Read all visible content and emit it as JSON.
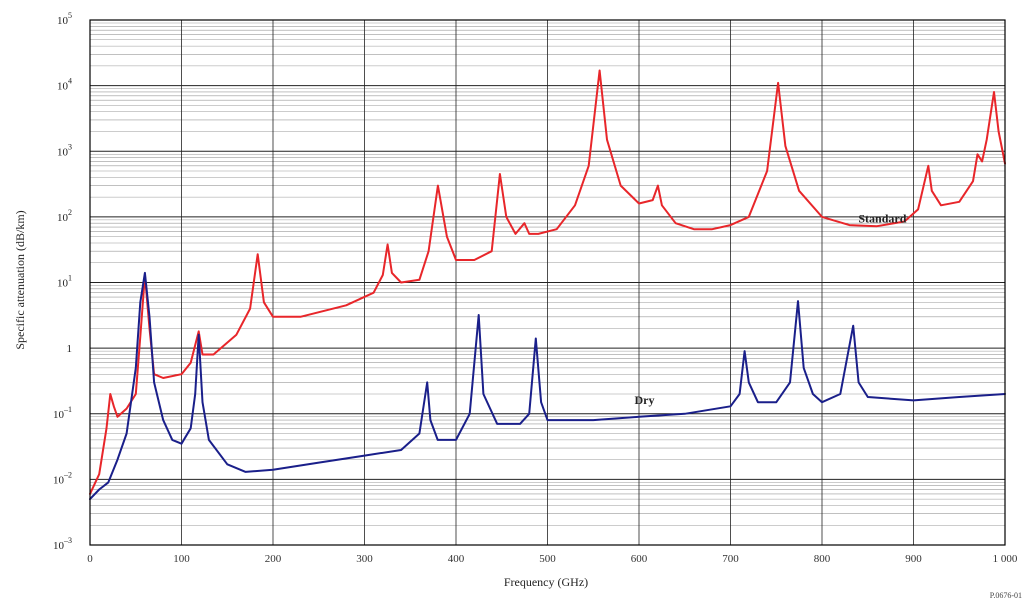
{
  "chart_data": {
    "type": "line",
    "title": "",
    "xlabel": "Frequency (GHz)",
    "ylabel": "Specific attenuation (dB/km)",
    "xlim": [
      0,
      1000
    ],
    "ylim": [
      0.001,
      100000
    ],
    "yscale": "log",
    "grid": true,
    "x_ticks": [
      "0",
      "100",
      "200",
      "300",
      "400",
      "500",
      "600",
      "700",
      "800",
      "900",
      "1 000"
    ],
    "y_ticks": [
      {
        "base": "10",
        "exp": "5"
      },
      {
        "base": "10",
        "exp": "4"
      },
      {
        "base": "10",
        "exp": "3"
      },
      {
        "base": "10",
        "exp": "2"
      },
      {
        "base": "10",
        "exp": "1"
      },
      {
        "base": "1",
        "exp": ""
      },
      {
        "base": "10",
        "exp": "–1"
      },
      {
        "base": "10",
        "exp": "–2"
      },
      {
        "base": "10",
        "exp": "–3"
      }
    ],
    "figure_ref": "P.0676-01",
    "series": [
      {
        "name": "Standard",
        "color": "#e8262a",
        "points": [
          [
            0,
            0.006
          ],
          [
            10,
            0.012
          ],
          [
            18,
            0.06
          ],
          [
            22.2,
            0.2
          ],
          [
            26,
            0.13
          ],
          [
            30,
            0.09
          ],
          [
            40,
            0.12
          ],
          [
            50,
            0.2
          ],
          [
            55,
            1.5
          ],
          [
            60,
            13
          ],
          [
            65,
            2.0
          ],
          [
            70,
            0.4
          ],
          [
            80,
            0.35
          ],
          [
            100,
            0.4
          ],
          [
            110,
            0.6
          ],
          [
            118.75,
            1.8
          ],
          [
            123,
            0.8
          ],
          [
            135,
            0.8
          ],
          [
            160,
            1.6
          ],
          [
            175,
            4
          ],
          [
            183.3,
            27
          ],
          [
            190,
            5
          ],
          [
            200,
            3.0
          ],
          [
            230,
            3.0
          ],
          [
            280,
            4.5
          ],
          [
            310,
            7
          ],
          [
            320,
            13
          ],
          [
            325.2,
            38
          ],
          [
            330,
            14
          ],
          [
            340,
            10
          ],
          [
            360,
            11
          ],
          [
            370,
            30
          ],
          [
            380.2,
            300
          ],
          [
            390,
            50
          ],
          [
            400,
            22
          ],
          [
            420,
            22
          ],
          [
            439,
            30
          ],
          [
            448,
            450
          ],
          [
            455,
            100
          ],
          [
            465,
            55
          ],
          [
            474.7,
            80
          ],
          [
            480,
            55
          ],
          [
            490,
            55
          ],
          [
            510,
            65
          ],
          [
            530,
            150
          ],
          [
            545,
            600
          ],
          [
            556.9,
            17000
          ],
          [
            565,
            1500
          ],
          [
            580,
            300
          ],
          [
            600,
            160
          ],
          [
            615,
            180
          ],
          [
            620.7,
            300
          ],
          [
            625,
            150
          ],
          [
            640,
            80
          ],
          [
            660,
            65
          ],
          [
            680,
            65
          ],
          [
            700,
            75
          ],
          [
            720,
            100
          ],
          [
            740,
            500
          ],
          [
            752,
            11000
          ],
          [
            760,
            1200
          ],
          [
            775,
            250
          ],
          [
            800,
            100
          ],
          [
            830,
            75
          ],
          [
            860,
            72
          ],
          [
            890,
            85
          ],
          [
            905,
            130
          ],
          [
            916.2,
            600
          ],
          [
            920,
            250
          ],
          [
            930,
            150
          ],
          [
            950,
            170
          ],
          [
            965,
            350
          ],
          [
            970,
            900
          ],
          [
            975,
            700
          ],
          [
            980,
            1500
          ],
          [
            988,
            8000
          ],
          [
            993,
            2000
          ],
          [
            1000,
            650
          ]
        ]
      },
      {
        "name": "Dry",
        "color": "#1a1f8a",
        "points": [
          [
            0,
            0.005
          ],
          [
            10,
            0.007
          ],
          [
            20,
            0.009
          ],
          [
            30,
            0.02
          ],
          [
            40,
            0.05
          ],
          [
            50,
            0.5
          ],
          [
            55,
            5
          ],
          [
            60,
            14
          ],
          [
            65,
            3
          ],
          [
            70,
            0.3
          ],
          [
            80,
            0.08
          ],
          [
            90,
            0.04
          ],
          [
            100,
            0.035
          ],
          [
            110,
            0.06
          ],
          [
            115,
            0.2
          ],
          [
            118.75,
            1.6
          ],
          [
            123,
            0.15
          ],
          [
            130,
            0.04
          ],
          [
            150,
            0.017
          ],
          [
            170,
            0.013
          ],
          [
            200,
            0.014
          ],
          [
            250,
            0.018
          ],
          [
            300,
            0.023
          ],
          [
            340,
            0.028
          ],
          [
            360,
            0.05
          ],
          [
            368.5,
            0.3
          ],
          [
            372,
            0.08
          ],
          [
            380,
            0.04
          ],
          [
            400,
            0.04
          ],
          [
            415,
            0.1
          ],
          [
            424.8,
            3.2
          ],
          [
            430,
            0.2
          ],
          [
            445,
            0.07
          ],
          [
            470,
            0.07
          ],
          [
            480,
            0.1
          ],
          [
            487.2,
            1.4
          ],
          [
            493,
            0.15
          ],
          [
            500,
            0.08
          ],
          [
            550,
            0.08
          ],
          [
            600,
            0.09
          ],
          [
            650,
            0.1
          ],
          [
            700,
            0.13
          ],
          [
            710,
            0.2
          ],
          [
            715.4,
            0.9
          ],
          [
            720,
            0.3
          ],
          [
            730,
            0.15
          ],
          [
            750,
            0.15
          ],
          [
            765,
            0.3
          ],
          [
            773.8,
            5.2
          ],
          [
            780,
            0.5
          ],
          [
            790,
            0.2
          ],
          [
            800,
            0.15
          ],
          [
            820,
            0.2
          ],
          [
            834.1,
            2.2
          ],
          [
            840,
            0.3
          ],
          [
            850,
            0.18
          ],
          [
            900,
            0.16
          ],
          [
            950,
            0.18
          ],
          [
            1000,
            0.2
          ]
        ]
      }
    ],
    "annotations": [
      {
        "text": "Standard",
        "x": 866,
        "y": 82
      },
      {
        "text": "Dry",
        "x": 606,
        "y": 0.14
      }
    ]
  }
}
